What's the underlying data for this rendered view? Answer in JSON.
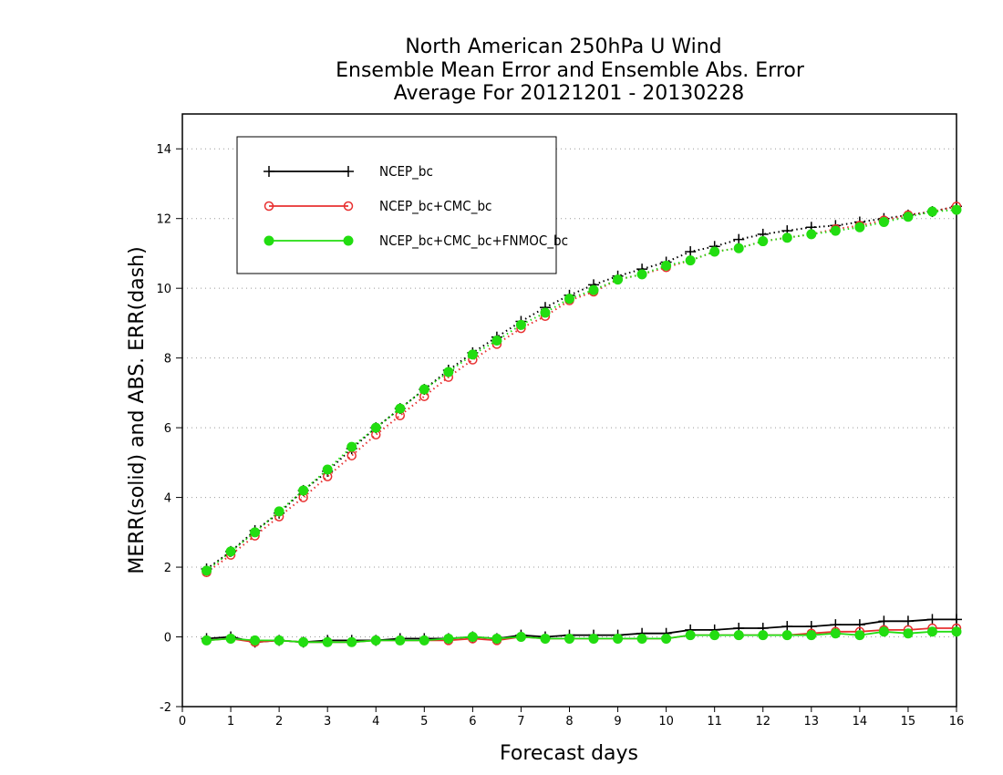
{
  "chart_data": {
    "type": "line",
    "title": [
      "North American 250hPa U Wind",
      "Ensemble Mean Error and Ensemble Abs. Error",
      "Average For 20121201 - 20130228"
    ],
    "xlabel": "Forecast days",
    "ylabel": "MERR(solid) and ABS. ERR(dash)",
    "xlim": [
      0,
      16
    ],
    "ylim": [
      -2,
      15
    ],
    "xticks": [
      0,
      1,
      2,
      3,
      4,
      5,
      6,
      7,
      8,
      9,
      10,
      11,
      12,
      13,
      14,
      15,
      16
    ],
    "yticks": [
      -2,
      0,
      2,
      4,
      6,
      8,
      10,
      12,
      14
    ],
    "grid": "horizontal dotted",
    "legend_position": "top-left",
    "x": [
      0.5,
      1,
      1.5,
      2,
      2.5,
      3,
      3.5,
      4,
      4.5,
      5,
      5.5,
      6,
      6.5,
      7,
      7.5,
      8,
      8.5,
      9,
      9.5,
      10,
      10.5,
      11,
      11.5,
      12,
      12.5,
      13,
      13.5,
      14,
      14.5,
      15,
      15.5,
      16
    ],
    "series": [
      {
        "name": "NCEP_bc",
        "color": "#000000",
        "marker": "plus",
        "abs_err": [
          1.95,
          2.45,
          3.05,
          3.55,
          4.2,
          4.75,
          5.4,
          6.0,
          6.55,
          7.1,
          7.65,
          8.15,
          8.6,
          9.05,
          9.45,
          9.8,
          10.1,
          10.35,
          10.55,
          10.75,
          11.05,
          11.2,
          11.4,
          11.55,
          11.65,
          11.75,
          11.8,
          11.9,
          12.0,
          12.1,
          12.2,
          12.35
        ],
        "mean_err": [
          -0.05,
          0.0,
          -0.15,
          -0.1,
          -0.15,
          -0.1,
          -0.1,
          -0.1,
          -0.05,
          -0.05,
          -0.05,
          0.0,
          -0.05,
          0.05,
          0.0,
          0.05,
          0.05,
          0.05,
          0.1,
          0.1,
          0.2,
          0.2,
          0.25,
          0.25,
          0.3,
          0.3,
          0.35,
          0.35,
          0.45,
          0.45,
          0.5,
          0.5
        ]
      },
      {
        "name": "NCEP_bc+CMC_bc",
        "color": "#e83030",
        "marker": "open-circle",
        "abs_err": [
          1.85,
          2.35,
          2.9,
          3.45,
          4.0,
          4.6,
          5.2,
          5.8,
          6.35,
          6.9,
          7.45,
          7.95,
          8.4,
          8.85,
          9.2,
          9.65,
          9.9,
          10.25,
          10.4,
          10.6,
          10.8,
          11.05,
          11.15,
          11.35,
          11.45,
          11.55,
          11.7,
          11.8,
          11.95,
          12.1,
          12.2,
          12.35
        ],
        "mean_err": [
          -0.1,
          -0.05,
          -0.15,
          -0.1,
          -0.15,
          -0.15,
          -0.15,
          -0.1,
          -0.1,
          -0.1,
          -0.1,
          -0.05,
          -0.1,
          0.0,
          -0.05,
          -0.05,
          -0.05,
          -0.05,
          -0.05,
          -0.05,
          0.05,
          0.05,
          0.05,
          0.05,
          0.05,
          0.1,
          0.15,
          0.15,
          0.2,
          0.2,
          0.25,
          0.25
        ]
      },
      {
        "name": "NCEP_bc+CMC_bc+FNMOC_bc",
        "color": "#22dd11",
        "marker": "filled-circle",
        "abs_err": [
          1.9,
          2.45,
          3.0,
          3.6,
          4.2,
          4.8,
          5.45,
          6.0,
          6.55,
          7.1,
          7.6,
          8.1,
          8.5,
          8.95,
          9.3,
          9.7,
          9.95,
          10.25,
          10.4,
          10.65,
          10.8,
          11.05,
          11.15,
          11.35,
          11.45,
          11.55,
          11.65,
          11.75,
          11.9,
          12.05,
          12.2,
          12.25
        ],
        "mean_err": [
          -0.1,
          -0.05,
          -0.1,
          -0.1,
          -0.15,
          -0.15,
          -0.15,
          -0.1,
          -0.1,
          -0.1,
          -0.05,
          0.0,
          -0.05,
          0.0,
          -0.05,
          -0.05,
          -0.05,
          -0.05,
          -0.05,
          -0.05,
          0.05,
          0.05,
          0.05,
          0.05,
          0.05,
          0.05,
          0.1,
          0.05,
          0.15,
          0.1,
          0.15,
          0.15
        ]
      }
    ]
  }
}
